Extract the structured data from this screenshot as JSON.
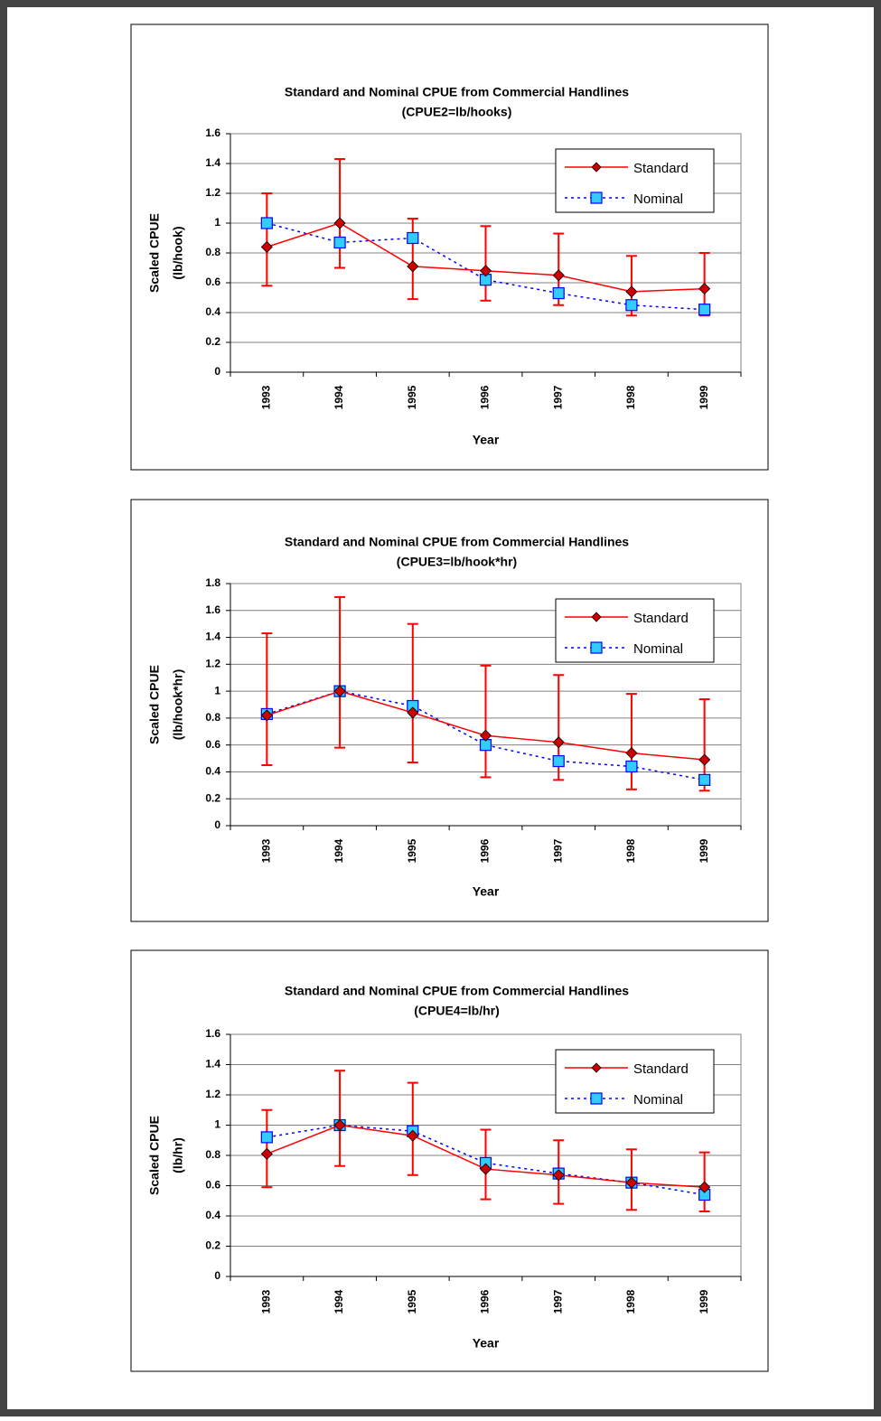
{
  "chart_data": [
    {
      "type": "line",
      "title": "Standard and Nominal CPUE from Commercial Handlines",
      "subtitle": "(CPUE2=lb/hooks)",
      "ylabel": [
        "Scaled CPUE",
        "(lb/hook)"
      ],
      "xlabel": "Year",
      "categories": [
        "1993",
        "1994",
        "1995",
        "1996",
        "1997",
        "1998",
        "1999"
      ],
      "ylim": [
        0,
        1.6
      ],
      "yticks": [
        0,
        0.2,
        0.4,
        0.6,
        0.8,
        1,
        1.2,
        1.4,
        1.6
      ],
      "grid": true,
      "legend": "upper right",
      "series": [
        {
          "name": "Standard",
          "color": "#ff0000",
          "marker": "diamond",
          "marker_color": "#cc0000",
          "dash": "solid",
          "values": [
            0.84,
            1.0,
            0.71,
            0.68,
            0.65,
            0.54,
            0.56
          ],
          "lower": [
            0.58,
            0.7,
            0.49,
            0.48,
            0.45,
            0.38,
            0.38
          ],
          "upper": [
            1.2,
            1.43,
            1.03,
            0.98,
            0.93,
            0.78,
            0.8
          ]
        },
        {
          "name": "Nominal",
          "color": "#0000ff",
          "marker": "square",
          "marker_color": "#33ccff",
          "dash": "dotted",
          "values": [
            1.0,
            0.87,
            0.9,
            0.62,
            0.53,
            0.45,
            0.42
          ]
        }
      ]
    },
    {
      "type": "line",
      "title": "Standard and Nominal CPUE from Commercial Handlines",
      "subtitle": "(CPUE3=lb/hook*hr)",
      "ylabel": [
        "Scaled CPUE",
        "(lb/hook*hr)"
      ],
      "xlabel": "Year",
      "categories": [
        "1993",
        "1994",
        "1995",
        "1996",
        "1997",
        "1998",
        "1999"
      ],
      "ylim": [
        0,
        1.8
      ],
      "yticks": [
        0,
        0.2,
        0.4,
        0.6,
        0.8,
        1,
        1.2,
        1.4,
        1.6,
        1.8
      ],
      "grid": true,
      "legend": "upper right",
      "series": [
        {
          "name": "Standard",
          "color": "#ff0000",
          "marker": "diamond",
          "marker_color": "#cc0000",
          "dash": "solid",
          "values": [
            0.82,
            1.0,
            0.84,
            0.67,
            0.62,
            0.54,
            0.49
          ],
          "lower": [
            0.45,
            0.58,
            0.47,
            0.36,
            0.34,
            0.27,
            0.26
          ],
          "upper": [
            1.43,
            1.7,
            1.5,
            1.19,
            1.12,
            0.98,
            0.94
          ]
        },
        {
          "name": "Nominal",
          "color": "#0000ff",
          "marker": "square",
          "marker_color": "#33ccff",
          "dash": "dotted",
          "values": [
            0.83,
            1.0,
            0.89,
            0.6,
            0.48,
            0.44,
            0.34
          ]
        }
      ]
    },
    {
      "type": "line",
      "title": "Standard and Nominal CPUE from Commercial Handlines",
      "subtitle": "(CPUE4=lb/hr)",
      "ylabel": [
        "Scaled CPUE",
        "(lb/hr)"
      ],
      "xlabel": "Year",
      "categories": [
        "1993",
        "1994",
        "1995",
        "1996",
        "1997",
        "1998",
        "1999"
      ],
      "ylim": [
        0,
        1.6
      ],
      "yticks": [
        0,
        0.2,
        0.4,
        0.6,
        0.8,
        1,
        1.2,
        1.4,
        1.6
      ],
      "grid": true,
      "legend": "upper right",
      "series": [
        {
          "name": "Standard",
          "color": "#ff0000",
          "marker": "diamond",
          "marker_color": "#cc0000",
          "dash": "solid",
          "values": [
            0.81,
            1.0,
            0.93,
            0.71,
            0.67,
            0.62,
            0.59
          ],
          "lower": [
            0.59,
            0.73,
            0.67,
            0.51,
            0.48,
            0.44,
            0.43
          ],
          "upper": [
            1.1,
            1.36,
            1.28,
            0.97,
            0.9,
            0.84,
            0.82
          ]
        },
        {
          "name": "Nominal",
          "color": "#0000ff",
          "marker": "square",
          "marker_color": "#33ccff",
          "dash": "dotted",
          "values": [
            0.92,
            1.0,
            0.96,
            0.75,
            0.68,
            0.62,
            0.54
          ]
        }
      ]
    }
  ]
}
